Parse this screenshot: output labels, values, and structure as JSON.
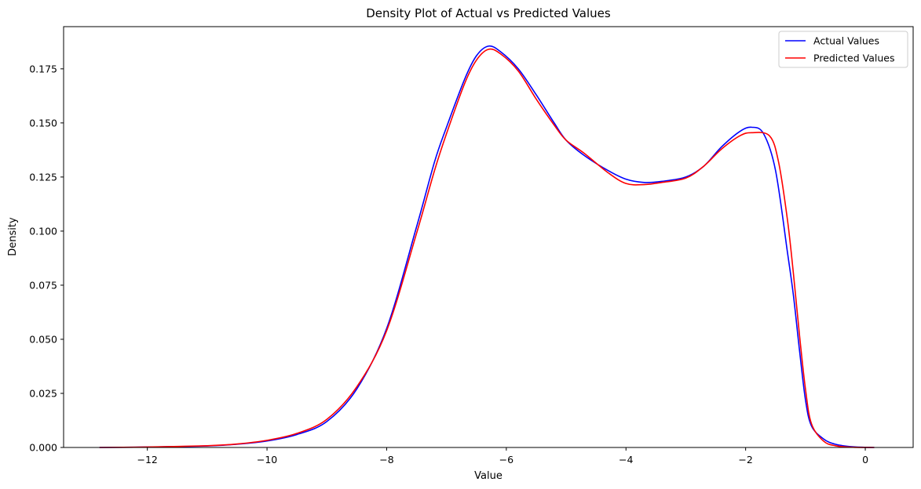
{
  "chart_data": {
    "type": "line",
    "title": "Density Plot of Actual vs Predicted Values",
    "xlabel": "Value",
    "ylabel": "Density",
    "xlim": [
      -13.4,
      0.8
    ],
    "ylim": [
      0,
      0.1945
    ],
    "xticks": [
      -12,
      -10,
      -8,
      -6,
      -4,
      -2,
      0
    ],
    "xtick_labels": [
      "−12",
      "−10",
      "−8",
      "−6",
      "−4",
      "−2",
      "0"
    ],
    "yticks": [
      0,
      0.025,
      0.05,
      0.075,
      0.1,
      0.125,
      0.15,
      0.175
    ],
    "ytick_labels": [
      "0.000",
      "0.025",
      "0.050",
      "0.075",
      "0.100",
      "0.125",
      "0.150",
      "0.175"
    ],
    "grid": false,
    "legend_position": "top-right",
    "series": [
      {
        "name": "Actual Values",
        "color": "#0000ff",
        "points": [
          [
            -12.8,
            0.0
          ],
          [
            -12,
            0.0002
          ],
          [
            -11,
            0.0007
          ],
          [
            -10.5,
            0.0015
          ],
          [
            -10,
            0.003
          ],
          [
            -9.5,
            0.006
          ],
          [
            -9,
            0.012
          ],
          [
            -8.5,
            0.027
          ],
          [
            -8,
            0.055
          ],
          [
            -7.5,
            0.102
          ],
          [
            -7.2,
            0.132
          ],
          [
            -7,
            0.148
          ],
          [
            -6.7,
            0.17
          ],
          [
            -6.5,
            0.181
          ],
          [
            -6.3,
            0.1855
          ],
          [
            -6.1,
            0.183
          ],
          [
            -5.8,
            0.175
          ],
          [
            -5.5,
            0.163
          ],
          [
            -5.2,
            0.15
          ],
          [
            -5,
            0.142
          ],
          [
            -4.7,
            0.135
          ],
          [
            -4.3,
            0.128
          ],
          [
            -4,
            0.124
          ],
          [
            -3.7,
            0.1225
          ],
          [
            -3.4,
            0.123
          ],
          [
            -3,
            0.125
          ],
          [
            -2.7,
            0.13
          ],
          [
            -2.4,
            0.139
          ],
          [
            -2.1,
            0.146
          ],
          [
            -1.9,
            0.148
          ],
          [
            -1.7,
            0.145
          ],
          [
            -1.5,
            0.128
          ],
          [
            -1.3,
            0.09
          ],
          [
            -1.2,
            0.07
          ],
          [
            -1.1,
            0.045
          ],
          [
            -1,
            0.022
          ],
          [
            -0.9,
            0.01
          ],
          [
            -0.7,
            0.004
          ],
          [
            -0.5,
            0.0015
          ],
          [
            -0.2,
            0.0003
          ],
          [
            0.15,
            0.0
          ]
        ]
      },
      {
        "name": "Predicted Values",
        "color": "#ff0000",
        "points": [
          [
            -12.8,
            0.0
          ],
          [
            -12,
            0.0002
          ],
          [
            -11,
            0.0008
          ],
          [
            -10.5,
            0.0016
          ],
          [
            -10,
            0.0033
          ],
          [
            -9.5,
            0.0065
          ],
          [
            -9,
            0.013
          ],
          [
            -8.5,
            0.028
          ],
          [
            -8,
            0.054
          ],
          [
            -7.5,
            0.099
          ],
          [
            -7.2,
            0.128
          ],
          [
            -7,
            0.145
          ],
          [
            -6.7,
            0.168
          ],
          [
            -6.5,
            0.179
          ],
          [
            -6.3,
            0.184
          ],
          [
            -6.1,
            0.182
          ],
          [
            -5.8,
            0.174
          ],
          [
            -5.5,
            0.161
          ],
          [
            -5.2,
            0.149
          ],
          [
            -5,
            0.142
          ],
          [
            -4.7,
            0.136
          ],
          [
            -4.3,
            0.127
          ],
          [
            -4,
            0.122
          ],
          [
            -3.7,
            0.1215
          ],
          [
            -3.4,
            0.1225
          ],
          [
            -3,
            0.1245
          ],
          [
            -2.7,
            0.13
          ],
          [
            -2.4,
            0.138
          ],
          [
            -2.1,
            0.144
          ],
          [
            -1.9,
            0.1455
          ],
          [
            -1.6,
            0.144
          ],
          [
            -1.45,
            0.132
          ],
          [
            -1.3,
            0.105
          ],
          [
            -1.2,
            0.08
          ],
          [
            -1.1,
            0.052
          ],
          [
            -1,
            0.027
          ],
          [
            -0.9,
            0.011
          ],
          [
            -0.7,
            0.003
          ],
          [
            -0.5,
            0.0008
          ],
          [
            -0.2,
            0.0001
          ],
          [
            0.15,
            0.0
          ]
        ]
      }
    ]
  }
}
